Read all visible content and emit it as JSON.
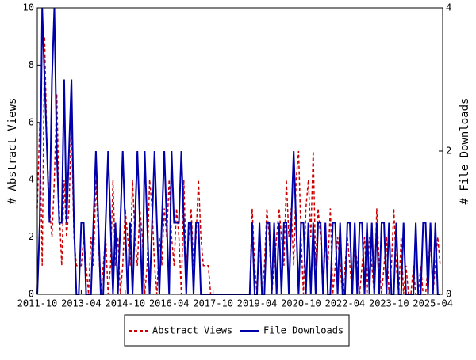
{
  "chart_data": {
    "type": "line",
    "x": [
      "2011-10",
      "2011-11",
      "2011-12",
      "2012-01",
      "2012-02",
      "2012-03",
      "2012-04",
      "2012-05",
      "2012-06",
      "2012-07",
      "2012-08",
      "2012-09",
      "2012-10",
      "2012-11",
      "2012-12",
      "2013-01",
      "2013-02",
      "2013-03",
      "2013-04",
      "2013-05",
      "2013-06",
      "2013-07",
      "2013-08",
      "2013-09",
      "2013-10",
      "2013-11",
      "2013-12",
      "2014-01",
      "2014-02",
      "2014-03",
      "2014-04",
      "2014-05",
      "2014-06",
      "2014-07",
      "2014-08",
      "2014-09",
      "2014-10",
      "2014-11",
      "2014-12",
      "2015-01",
      "2015-02",
      "2015-03",
      "2015-04",
      "2015-05",
      "2015-06",
      "2015-07",
      "2015-08",
      "2015-09",
      "2015-10",
      "2015-11",
      "2015-12",
      "2016-01",
      "2016-02",
      "2016-03",
      "2016-04",
      "2016-05",
      "2016-06",
      "2016-07",
      "2016-08",
      "2016-09",
      "2016-10",
      "2016-11",
      "2016-12",
      "2017-01",
      "2017-02",
      "2017-03",
      "2017-04",
      "2017-05",
      "2017-06",
      "2017-07",
      "2017-08",
      "2017-09",
      "2017-10",
      "2017-11",
      "2017-12",
      "2018-01",
      "2018-02",
      "2018-03",
      "2018-04",
      "2018-05",
      "2018-06",
      "2018-07",
      "2018-08",
      "2018-09",
      "2018-10",
      "2018-11",
      "2018-12",
      "2019-01",
      "2019-02",
      "2019-03",
      "2019-04",
      "2019-05",
      "2019-06",
      "2019-07",
      "2019-08",
      "2019-09",
      "2019-10",
      "2019-11",
      "2019-12",
      "2020-01",
      "2020-02",
      "2020-03",
      "2020-04",
      "2020-05",
      "2020-06",
      "2020-07",
      "2020-08",
      "2020-09",
      "2020-10",
      "2020-11",
      "2020-12",
      "2021-01",
      "2021-02",
      "2021-03",
      "2021-04",
      "2021-05",
      "2021-06",
      "2021-07",
      "2021-08",
      "2021-09",
      "2021-10",
      "2021-11",
      "2021-12",
      "2022-01",
      "2022-02",
      "2022-03",
      "2022-04",
      "2022-05",
      "2022-06",
      "2022-07",
      "2022-08",
      "2022-09",
      "2022-10",
      "2022-11",
      "2022-12",
      "2023-01",
      "2023-02",
      "2023-03",
      "2023-04",
      "2023-05",
      "2023-06",
      "2023-07",
      "2023-08",
      "2023-09",
      "2023-10",
      "2023-11",
      "2023-12",
      "2024-01",
      "2024-02",
      "2024-03",
      "2024-04",
      "2024-05",
      "2024-06",
      "2024-07",
      "2024-08",
      "2024-09",
      "2024-10",
      "2024-11",
      "2024-12",
      "2025-01",
      "2025-02",
      "2025-03",
      "2025-04",
      "2025-05",
      "2025-06",
      "2025-07"
    ],
    "series": [
      {
        "name": "Abstract Views",
        "color": "#cc0000",
        "dash": true,
        "values": [
          3,
          6,
          1,
          9,
          5,
          3,
          2,
          4,
          7,
          3,
          1,
          4,
          2,
          3,
          6,
          2,
          1,
          1,
          1,
          2,
          1,
          0,
          2,
          1,
          4,
          2,
          0,
          1,
          2,
          0,
          1,
          4,
          1,
          2,
          0,
          1,
          3,
          2,
          1,
          4,
          2,
          1,
          3,
          2,
          0,
          1,
          4,
          3,
          1,
          0,
          2,
          1,
          3,
          2,
          4,
          2,
          1,
          3,
          2,
          0,
          4,
          1,
          2,
          3,
          1,
          2,
          4,
          2,
          1,
          1,
          1,
          0,
          0,
          0,
          0,
          0,
          0,
          0,
          0,
          0,
          0,
          0,
          0,
          0,
          0,
          0,
          0,
          0,
          3,
          1,
          0,
          2,
          0,
          1,
          3,
          2,
          0,
          1,
          2,
          3,
          2,
          1,
          4,
          2,
          3,
          1,
          4,
          5,
          2,
          0,
          3,
          4,
          2,
          5,
          1,
          3,
          2,
          0,
          2,
          1,
          3,
          0,
          1,
          2,
          1,
          0,
          1,
          2,
          1,
          0,
          2,
          1,
          0,
          1,
          2,
          0,
          2,
          1,
          0,
          3,
          1,
          0,
          1,
          2,
          0,
          1,
          3,
          1,
          0,
          2,
          0,
          1,
          0,
          0,
          1,
          0,
          0,
          1,
          0,
          0,
          1,
          2,
          0,
          1,
          2,
          1
        ]
      },
      {
        "name": "File Downloads",
        "color": "#0000aa",
        "axis": "y2",
        "values": [
          0,
          1,
          4,
          3,
          2,
          1,
          3,
          4,
          2,
          1,
          1,
          3,
          1,
          2,
          3,
          1,
          0,
          0,
          1,
          1,
          0,
          0,
          0,
          1,
          2,
          1,
          0,
          0,
          1,
          2,
          1,
          0,
          1,
          0,
          1,
          2,
          1,
          0,
          1,
          0,
          1,
          2,
          1,
          0,
          2,
          1,
          0,
          1,
          2,
          1,
          0,
          1,
          2,
          1,
          0,
          2,
          1,
          1,
          1,
          2,
          1,
          0,
          1,
          1,
          0,
          1,
          1,
          0,
          0,
          0,
          0,
          0,
          0,
          0,
          0,
          0,
          0,
          0,
          0,
          0,
          0,
          0,
          0,
          0,
          0,
          0,
          0,
          0,
          1,
          0,
          0,
          1,
          0,
          0,
          1,
          1,
          0,
          1,
          0,
          1,
          0,
          1,
          1,
          0,
          1,
          2,
          1,
          0,
          1,
          1,
          0,
          1,
          0,
          1,
          0,
          1,
          1,
          0,
          1,
          0,
          0,
          1,
          1,
          0,
          1,
          0,
          0,
          1,
          1,
          0,
          1,
          0,
          1,
          1,
          0,
          1,
          0,
          1,
          0,
          1,
          0,
          1,
          1,
          0,
          1,
          0,
          0,
          1,
          0,
          0,
          1,
          0,
          0,
          0,
          0,
          1,
          0,
          0,
          1,
          1,
          0,
          1,
          0,
          1,
          0,
          0
        ]
      }
    ],
    "xlim": [
      "2011-10",
      "2025-08"
    ],
    "xticks": [
      "2011-10",
      "2013-04",
      "2014-10",
      "2016-04",
      "2017-10",
      "2019-04",
      "2020-10",
      "2022-04",
      "2023-10",
      "2025-04"
    ],
    "ylim": [
      0,
      10
    ],
    "yticks": [
      0,
      2,
      4,
      6,
      8,
      10
    ],
    "y2lim": [
      0,
      4
    ],
    "y2ticks": [
      0,
      2,
      4
    ],
    "ylabel": "# Abstract Views",
    "y2label": "# File Downloads"
  }
}
